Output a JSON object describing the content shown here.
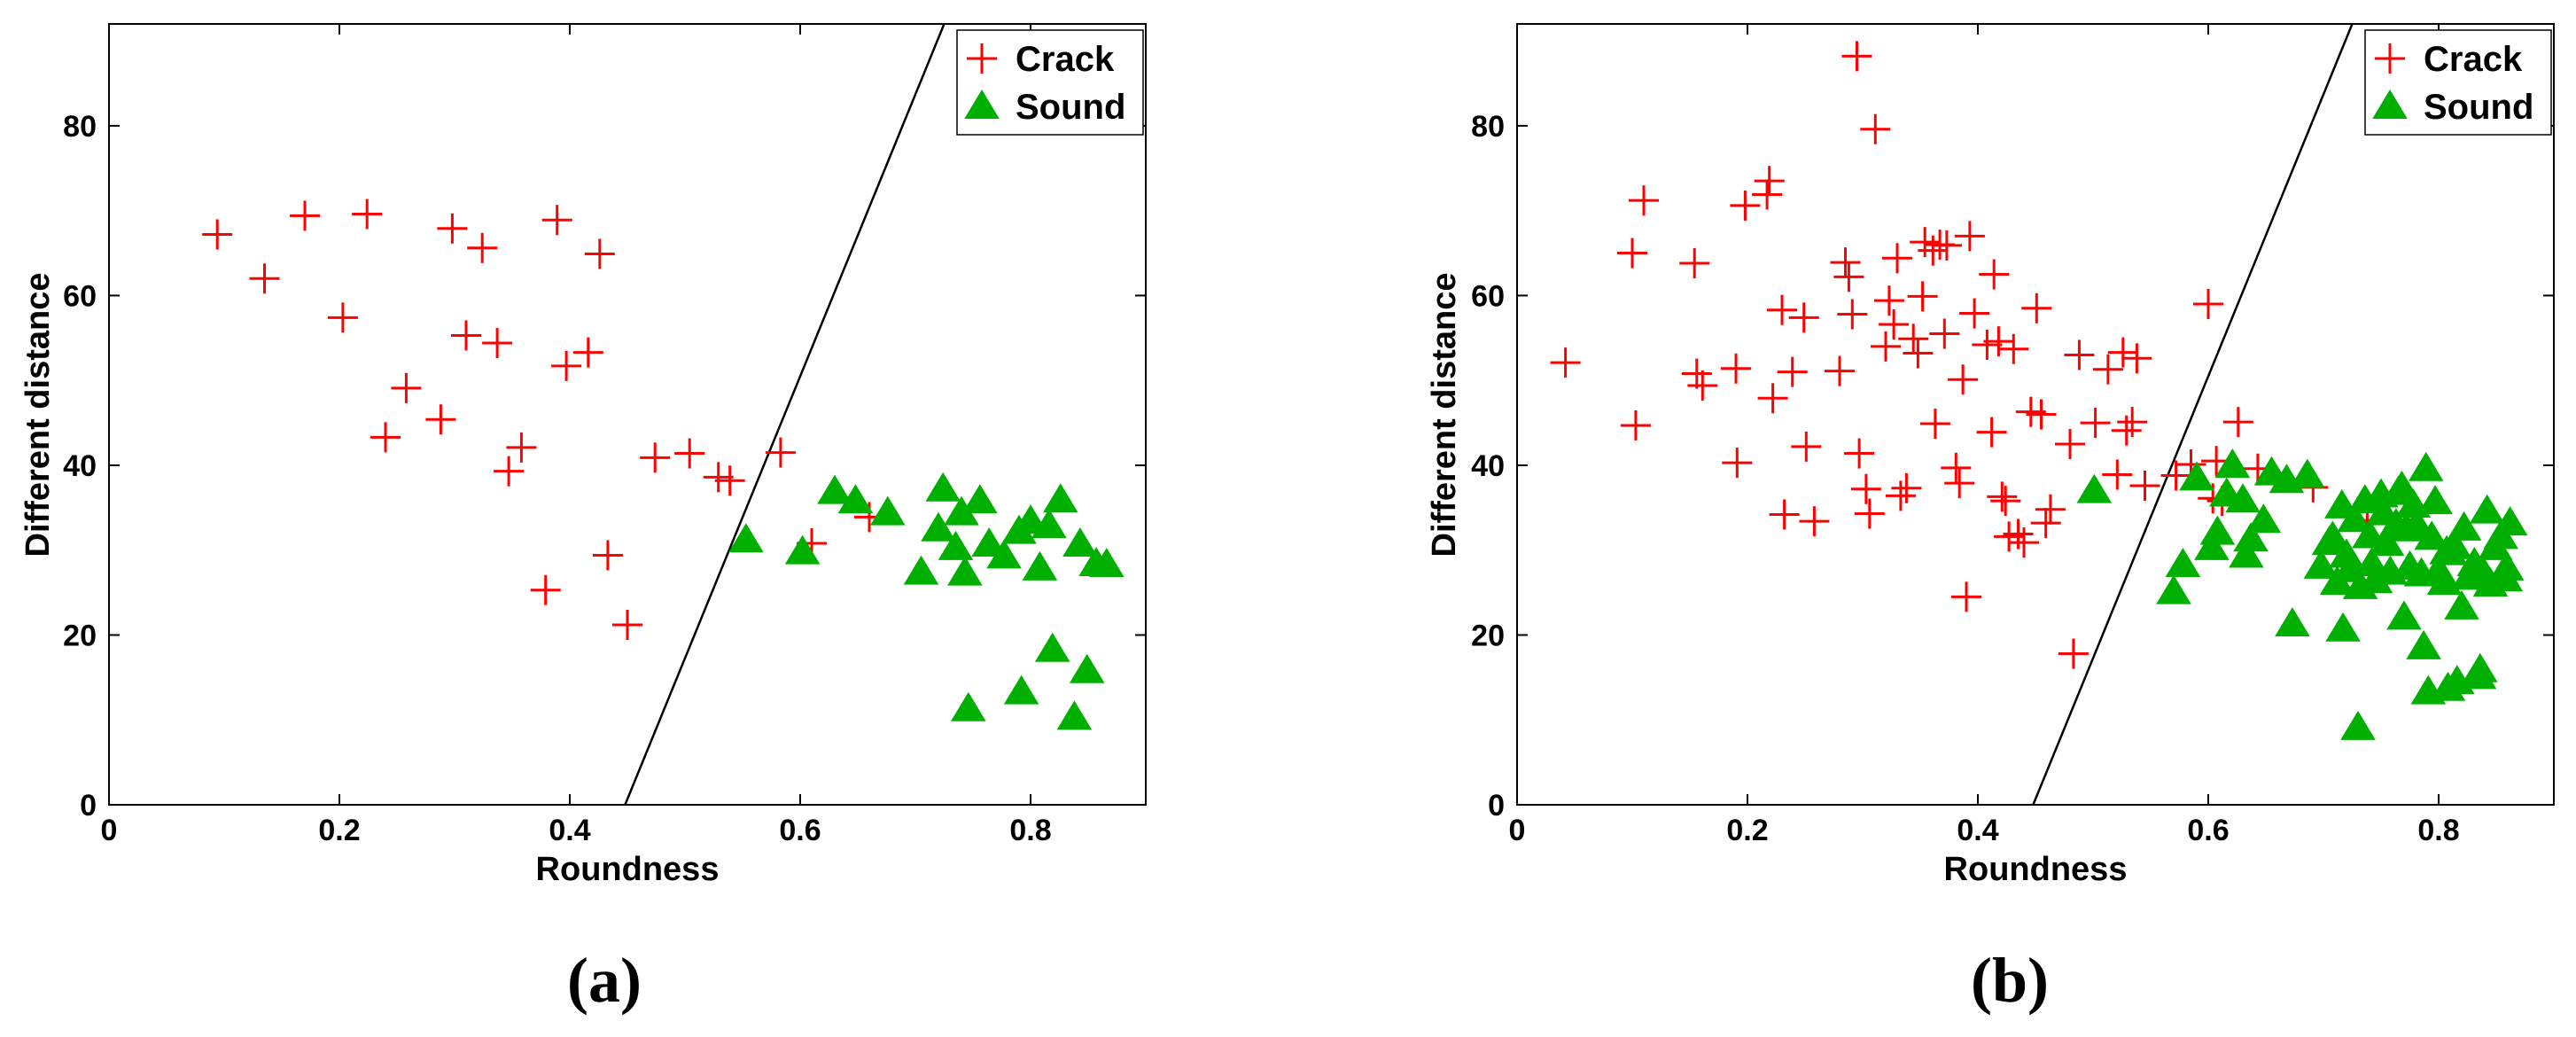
{
  "chart_data": [
    {
      "type": "scatter",
      "panel_label": "(a)",
      "xlabel": "Roundness",
      "ylabel": "Different distance",
      "xlim": [
        0,
        0.9
      ],
      "ylim": [
        0,
        92
      ],
      "xticks": [
        0,
        0.2,
        0.4,
        0.6,
        0.8
      ],
      "xtick_labels": [
        "0",
        "0.2",
        "0.4",
        "0.6",
        "0.8"
      ],
      "yticks": [
        0,
        20,
        40,
        60,
        80
      ],
      "ytick_labels": [
        "0",
        "20",
        "40",
        "60",
        "80"
      ],
      "legend_position": "top-right",
      "decision_boundary": {
        "points": [
          [
            0.448,
            0
          ],
          [
            0.725,
            92
          ]
        ]
      },
      "series": [
        {
          "name": "Crack",
          "marker": "plus",
          "color": "#ff0000",
          "points": [
            [
              0.094,
              67.2
            ],
            [
              0.135,
              62.0
            ],
            [
              0.17,
              69.4
            ],
            [
              0.203,
              57.4
            ],
            [
              0.224,
              69.6
            ],
            [
              0.24,
              43.3
            ],
            [
              0.258,
              49.1
            ],
            [
              0.288,
              45.4
            ],
            [
              0.298,
              67.9
            ],
            [
              0.31,
              55.3
            ],
            [
              0.324,
              65.6
            ],
            [
              0.337,
              54.4
            ],
            [
              0.347,
              39.3
            ],
            [
              0.358,
              42.1
            ],
            [
              0.379,
              25.3
            ],
            [
              0.389,
              68.9
            ],
            [
              0.397,
              51.7
            ],
            [
              0.416,
              53.3
            ],
            [
              0.426,
              64.9
            ],
            [
              0.433,
              29.4
            ],
            [
              0.45,
              21.2
            ],
            [
              0.474,
              40.9
            ],
            [
              0.504,
              41.4
            ],
            [
              0.529,
              38.6
            ],
            [
              0.539,
              38.2
            ],
            [
              0.583,
              41.5
            ],
            [
              0.61,
              30.8
            ],
            [
              0.66,
              33.9
            ]
          ]
        },
        {
          "name": "Sound",
          "marker": "triangle",
          "color": "#00b000",
          "points": [
            [
              0.553,
              31.2
            ],
            [
              0.602,
              29.8
            ],
            [
              0.63,
              36.9
            ],
            [
              0.648,
              35.8
            ],
            [
              0.676,
              34.4
            ],
            [
              0.705,
              27.4
            ],
            [
              0.72,
              32.5
            ],
            [
              0.724,
              37.2
            ],
            [
              0.735,
              30.3
            ],
            [
              0.74,
              34.4
            ],
            [
              0.743,
              27.3
            ],
            [
              0.746,
              11.3
            ],
            [
              0.756,
              35.8
            ],
            [
              0.764,
              30.7
            ],
            [
              0.777,
              29.3
            ],
            [
              0.79,
              32.2
            ],
            [
              0.792,
              13.3
            ],
            [
              0.8,
              33.4
            ],
            [
              0.808,
              27.9
            ],
            [
              0.816,
              32.9
            ],
            [
              0.819,
              18.3
            ],
            [
              0.826,
              35.9
            ],
            [
              0.838,
              10.3
            ],
            [
              0.843,
              30.7
            ],
            [
              0.849,
              15.8
            ],
            [
              0.857,
              28.4
            ],
            [
              0.866,
              28.3
            ]
          ]
        }
      ]
    },
    {
      "type": "scatter",
      "panel_label": "(b)",
      "xlabel": "Roundness",
      "ylabel": "Different distance",
      "xlim": [
        0,
        0.9
      ],
      "ylim": [
        0,
        92
      ],
      "xticks": [
        0,
        0.2,
        0.4,
        0.6,
        0.8
      ],
      "xtick_labels": [
        "0",
        "0.2",
        "0.4",
        "0.6",
        "0.8"
      ],
      "yticks": [
        0,
        20,
        40,
        60,
        80
      ],
      "ytick_labels": [
        "0",
        "20",
        "40",
        "60",
        "80"
      ],
      "legend_position": "top-right",
      "decision_boundary": {
        "points": [
          [
            0.448,
            0
          ],
          [
            0.725,
            92
          ]
        ]
      },
      "series": [
        {
          "name": "Crack",
          "marker": "plus",
          "color": "#ff0000",
          "points": [
            [
              0.042,
              52.1
            ],
            [
              0.1,
              65.0
            ],
            [
              0.103,
              44.7
            ],
            [
              0.11,
              71.2
            ],
            [
              0.154,
              63.8
            ],
            [
              0.156,
              50.8
            ],
            [
              0.161,
              49.4
            ],
            [
              0.19,
              51.4
            ],
            [
              0.191,
              40.3
            ],
            [
              0.198,
              70.6
            ],
            [
              0.217,
              71.9
            ],
            [
              0.219,
              73.5
            ],
            [
              0.222,
              47.9
            ],
            [
              0.23,
              58.3
            ],
            [
              0.232,
              34.2
            ],
            [
              0.239,
              51.0
            ],
            [
              0.249,
              57.4
            ],
            [
              0.251,
              42.2
            ],
            [
              0.258,
              33.4
            ],
            [
              0.28,
              51.1
            ],
            [
              0.285,
              63.9
            ],
            [
              0.288,
              62.2
            ],
            [
              0.291,
              57.8
            ],
            [
              0.295,
              88.2
            ],
            [
              0.297,
              41.4
            ],
            [
              0.303,
              37.2
            ],
            [
              0.306,
              34.3
            ],
            [
              0.311,
              79.6
            ],
            [
              0.32,
              54.0
            ],
            [
              0.323,
              59.4
            ],
            [
              0.327,
              56.6
            ],
            [
              0.33,
              64.4
            ],
            [
              0.333,
              36.4
            ],
            [
              0.338,
              37.3
            ],
            [
              0.344,
              54.9
            ],
            [
              0.348,
              53.2
            ],
            [
              0.352,
              59.9
            ],
            [
              0.354,
              66.3
            ],
            [
              0.361,
              65.3
            ],
            [
              0.363,
              44.9
            ],
            [
              0.367,
              66.0
            ],
            [
              0.371,
              55.5
            ],
            [
              0.373,
              65.9
            ],
            [
              0.381,
              39.7
            ],
            [
              0.384,
              37.9
            ],
            [
              0.387,
              50.1
            ],
            [
              0.39,
              24.5
            ],
            [
              0.393,
              67.0
            ],
            [
              0.397,
              57.9
            ],
            [
              0.408,
              54.2
            ],
            [
              0.412,
              43.9
            ],
            [
              0.414,
              62.5
            ],
            [
              0.418,
              54.6
            ],
            [
              0.421,
              36.3
            ],
            [
              0.424,
              35.8
            ],
            [
              0.427,
              31.6
            ],
            [
              0.431,
              53.7
            ],
            [
              0.435,
              31.9
            ],
            [
              0.44,
              30.9
            ],
            [
              0.446,
              46.3
            ],
            [
              0.451,
              58.5
            ],
            [
              0.455,
              46.0
            ],
            [
              0.459,
              33.2
            ],
            [
              0.463,
              34.8
            ],
            [
              0.48,
              42.5
            ],
            [
              0.483,
              17.8
            ],
            [
              0.488,
              53.0
            ],
            [
              0.502,
              45.0
            ],
            [
              0.513,
              51.3
            ],
            [
              0.521,
              38.9
            ],
            [
              0.526,
              53.3
            ],
            [
              0.529,
              44.1
            ],
            [
              0.534,
              45.1
            ],
            [
              0.538,
              52.6
            ],
            [
              0.545,
              37.6
            ],
            [
              0.572,
              38.8
            ],
            [
              0.585,
              40.1
            ],
            [
              0.6,
              59.0
            ],
            [
              0.604,
              36.1
            ],
            [
              0.607,
              40.5
            ],
            [
              0.612,
              35.8
            ],
            [
              0.626,
              45.1
            ],
            [
              0.643,
              39.6
            ],
            [
              0.691,
              37.4
            ],
            [
              0.738,
              33.5
            ]
          ]
        },
        {
          "name": "Sound",
          "marker": "triangle",
          "color": "#00b000",
          "points": [
            [
              0.501,
              37.0
            ],
            [
              0.57,
              25.1
            ],
            [
              0.578,
              28.3
            ],
            [
              0.59,
              38.5
            ],
            [
              0.603,
              30.3
            ],
            [
              0.608,
              32.1
            ],
            [
              0.616,
              36.6
            ],
            [
              0.621,
              40.0
            ],
            [
              0.63,
              35.9
            ],
            [
              0.633,
              29.4
            ],
            [
              0.637,
              31.3
            ],
            [
              0.648,
              33.5
            ],
            [
              0.655,
              39.1
            ],
            [
              0.668,
              38.2
            ],
            [
              0.673,
              21.3
            ],
            [
              0.686,
              38.8
            ],
            [
              0.698,
              28.1
            ],
            [
              0.705,
              30.9
            ],
            [
              0.708,
              31.5
            ],
            [
              0.712,
              26.2
            ],
            [
              0.716,
              35.2
            ],
            [
              0.717,
              20.7
            ],
            [
              0.72,
              29.4
            ],
            [
              0.723,
              27.7
            ],
            [
              0.727,
              33.6
            ],
            [
              0.73,
              9.1
            ],
            [
              0.732,
              25.7
            ],
            [
              0.736,
              35.8
            ],
            [
              0.74,
              31.7
            ],
            [
              0.742,
              28.4
            ],
            [
              0.745,
              26.4
            ],
            [
              0.75,
              36.5
            ],
            [
              0.752,
              34.4
            ],
            [
              0.755,
              30.8
            ],
            [
              0.758,
              27.4
            ],
            [
              0.763,
              33.0
            ],
            [
              0.765,
              36.8
            ],
            [
              0.768,
              37.4
            ],
            [
              0.77,
              22.1
            ],
            [
              0.772,
              32.5
            ],
            [
              0.775,
              28.0
            ],
            [
              0.778,
              35.3
            ],
            [
              0.781,
              33.0
            ],
            [
              0.785,
              27.2
            ],
            [
              0.787,
              18.6
            ],
            [
              0.789,
              39.6
            ],
            [
              0.791,
              13.3
            ],
            [
              0.794,
              31.5
            ],
            [
              0.797,
              35.7
            ],
            [
              0.8,
              27.6
            ],
            [
              0.805,
              26.2
            ],
            [
              0.807,
              29.8
            ],
            [
              0.808,
              13.7
            ],
            [
              0.81,
              29.7
            ],
            [
              0.814,
              30.4
            ],
            [
              0.816,
              14.5
            ],
            [
              0.82,
              23.3
            ],
            [
              0.822,
              32.6
            ],
            [
              0.826,
              26.8
            ],
            [
              0.831,
              28.4
            ],
            [
              0.835,
              15.1
            ],
            [
              0.836,
              15.9
            ],
            [
              0.838,
              27.5
            ],
            [
              0.842,
              34.6
            ],
            [
              0.845,
              26.0
            ],
            [
              0.849,
              30.3
            ],
            [
              0.854,
              31.6
            ],
            [
              0.858,
              26.6
            ],
            [
              0.859,
              27.9
            ],
            [
              0.862,
              33.2
            ]
          ]
        }
      ]
    }
  ]
}
